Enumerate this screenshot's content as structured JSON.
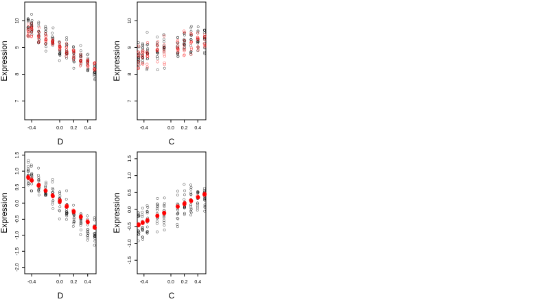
{
  "chart_data": [
    {
      "type": "scatter",
      "xlabel": "D",
      "ylabel": "Expression",
      "xlim": [
        -0.5,
        0.52
      ],
      "ylim": [
        6.3,
        10.7
      ],
      "xticks": [
        -0.4,
        0.0,
        0.2,
        0.4
      ],
      "xtick_labels": [
        "-0.4",
        "0.0",
        "0.2",
        "0.4"
      ],
      "yticks": [
        7,
        8,
        9,
        10
      ],
      "ytick_labels": [
        "7",
        "8",
        "9",
        "10"
      ],
      "x_levels": [
        -0.45,
        -0.4,
        -0.3,
        -0.2,
        -0.1,
        0.0,
        0.1,
        0.2,
        0.3,
        0.4,
        0.5
      ],
      "observed_trend": {
        "x": [
          -0.45,
          0.5
        ],
        "y": [
          9.8,
          8.2
        ],
        "spread": 0.55
      },
      "fitted_trend": {
        "x": [
          -0.45,
          0.5
        ],
        "y": [
          9.7,
          8.3
        ],
        "spread": 0.3
      },
      "series": [
        {
          "color": "#000000",
          "marker": "open-circle"
        },
        {
          "color": "#ff0000",
          "marker": "open-circle"
        }
      ],
      "grid": false,
      "legend": "none"
    },
    {
      "type": "scatter",
      "xlabel": "C",
      "ylabel": "Expression",
      "xlim": [
        -0.5,
        0.52
      ],
      "ylim": [
        6.3,
        10.7
      ],
      "xticks": [
        -0.4,
        0.0,
        0.2,
        0.4
      ],
      "xtick_labels": [
        "-0.4",
        "0.0",
        "0.2",
        "0.4"
      ],
      "yticks": [
        7,
        8,
        9,
        10
      ],
      "ytick_labels": [
        "7",
        "8",
        "9",
        "10"
      ],
      "x_levels": [
        -0.48,
        -0.42,
        -0.35,
        -0.2,
        -0.1,
        0.1,
        0.2,
        0.3,
        0.4,
        0.5
      ],
      "observed_trend": {
        "x": [
          -0.48,
          0.5
        ],
        "y": [
          8.7,
          9.4
        ],
        "spread": 0.7
      },
      "fitted_trend": {
        "x": [
          -0.48,
          0.5
        ],
        "y": [
          8.6,
          9.3
        ],
        "spread": 0.6
      },
      "series": [
        {
          "color": "#000000",
          "marker": "open-circle"
        },
        {
          "color": "#ff0000",
          "marker": "open-circle"
        }
      ],
      "grid": false,
      "legend": "none"
    },
    {
      "type": "scatter",
      "xlabel": "D",
      "ylabel": "Expression",
      "xlim": [
        -0.5,
        0.52
      ],
      "ylim": [
        -2.2,
        1.6
      ],
      "xticks": [
        -0.4,
        0.0,
        0.2,
        0.4
      ],
      "xtick_labels": [
        "-0.4",
        "0.0",
        "0.2",
        "0.4"
      ],
      "yticks": [
        1.5,
        1.0,
        0.5,
        0.0,
        -0.5,
        -1.0,
        -1.5,
        -2.0
      ],
      "ytick_labels": [
        "1.5",
        "1.0",
        "0.5",
        "0.0",
        "-0.5",
        "-1.0",
        "-1.5",
        "-2.0"
      ],
      "x_levels": [
        -0.45,
        -0.4,
        -0.3,
        -0.2,
        -0.1,
        0.0,
        0.1,
        0.2,
        0.3,
        0.4,
        0.5
      ],
      "observed_trend": {
        "x": [
          -0.45,
          0.5
        ],
        "y": [
          0.8,
          -0.9
        ],
        "spread": 0.55
      },
      "fitted_trend": {
        "x": [
          -0.45,
          0.5
        ],
        "y": [
          0.8,
          -0.75
        ],
        "spread": 0.04
      },
      "series": [
        {
          "color": "#000000",
          "marker": "open-circle"
        },
        {
          "color": "#ff0000",
          "marker": "filled-circle"
        }
      ],
      "grid": false,
      "legend": "none"
    },
    {
      "type": "scatter",
      "xlabel": "C",
      "ylabel": "Expression",
      "xlim": [
        -0.5,
        0.52
      ],
      "ylim": [
        -1.9,
        1.7
      ],
      "xticks": [
        -0.4,
        0.0,
        0.2,
        0.4
      ],
      "xtick_labels": [
        "-0.4",
        "0.0",
        "0.2",
        "0.4"
      ],
      "yticks": [
        1.5,
        1.0,
        0.5,
        0.0,
        -0.5,
        -1.0,
        -1.5
      ],
      "ytick_labels": [
        "1.5",
        "1.0",
        "0.5",
        "0.0",
        "-0.5",
        "-1.0",
        "-1.5"
      ],
      "x_levels": [
        -0.48,
        -0.42,
        -0.35,
        -0.2,
        -0.1,
        0.1,
        0.2,
        0.3,
        0.4,
        0.5
      ],
      "observed_trend": {
        "x": [
          -0.48,
          0.5
        ],
        "y": [
          -0.45,
          0.45
        ],
        "spread": 0.6
      },
      "fitted_trend": {
        "x": [
          -0.48,
          0.5
        ],
        "y": [
          -0.45,
          0.45
        ],
        "spread": 0.04
      },
      "series": [
        {
          "color": "#000000",
          "marker": "open-circle"
        },
        {
          "color": "#ff0000",
          "marker": "filled-circle"
        }
      ],
      "grid": false,
      "legend": "none"
    }
  ]
}
